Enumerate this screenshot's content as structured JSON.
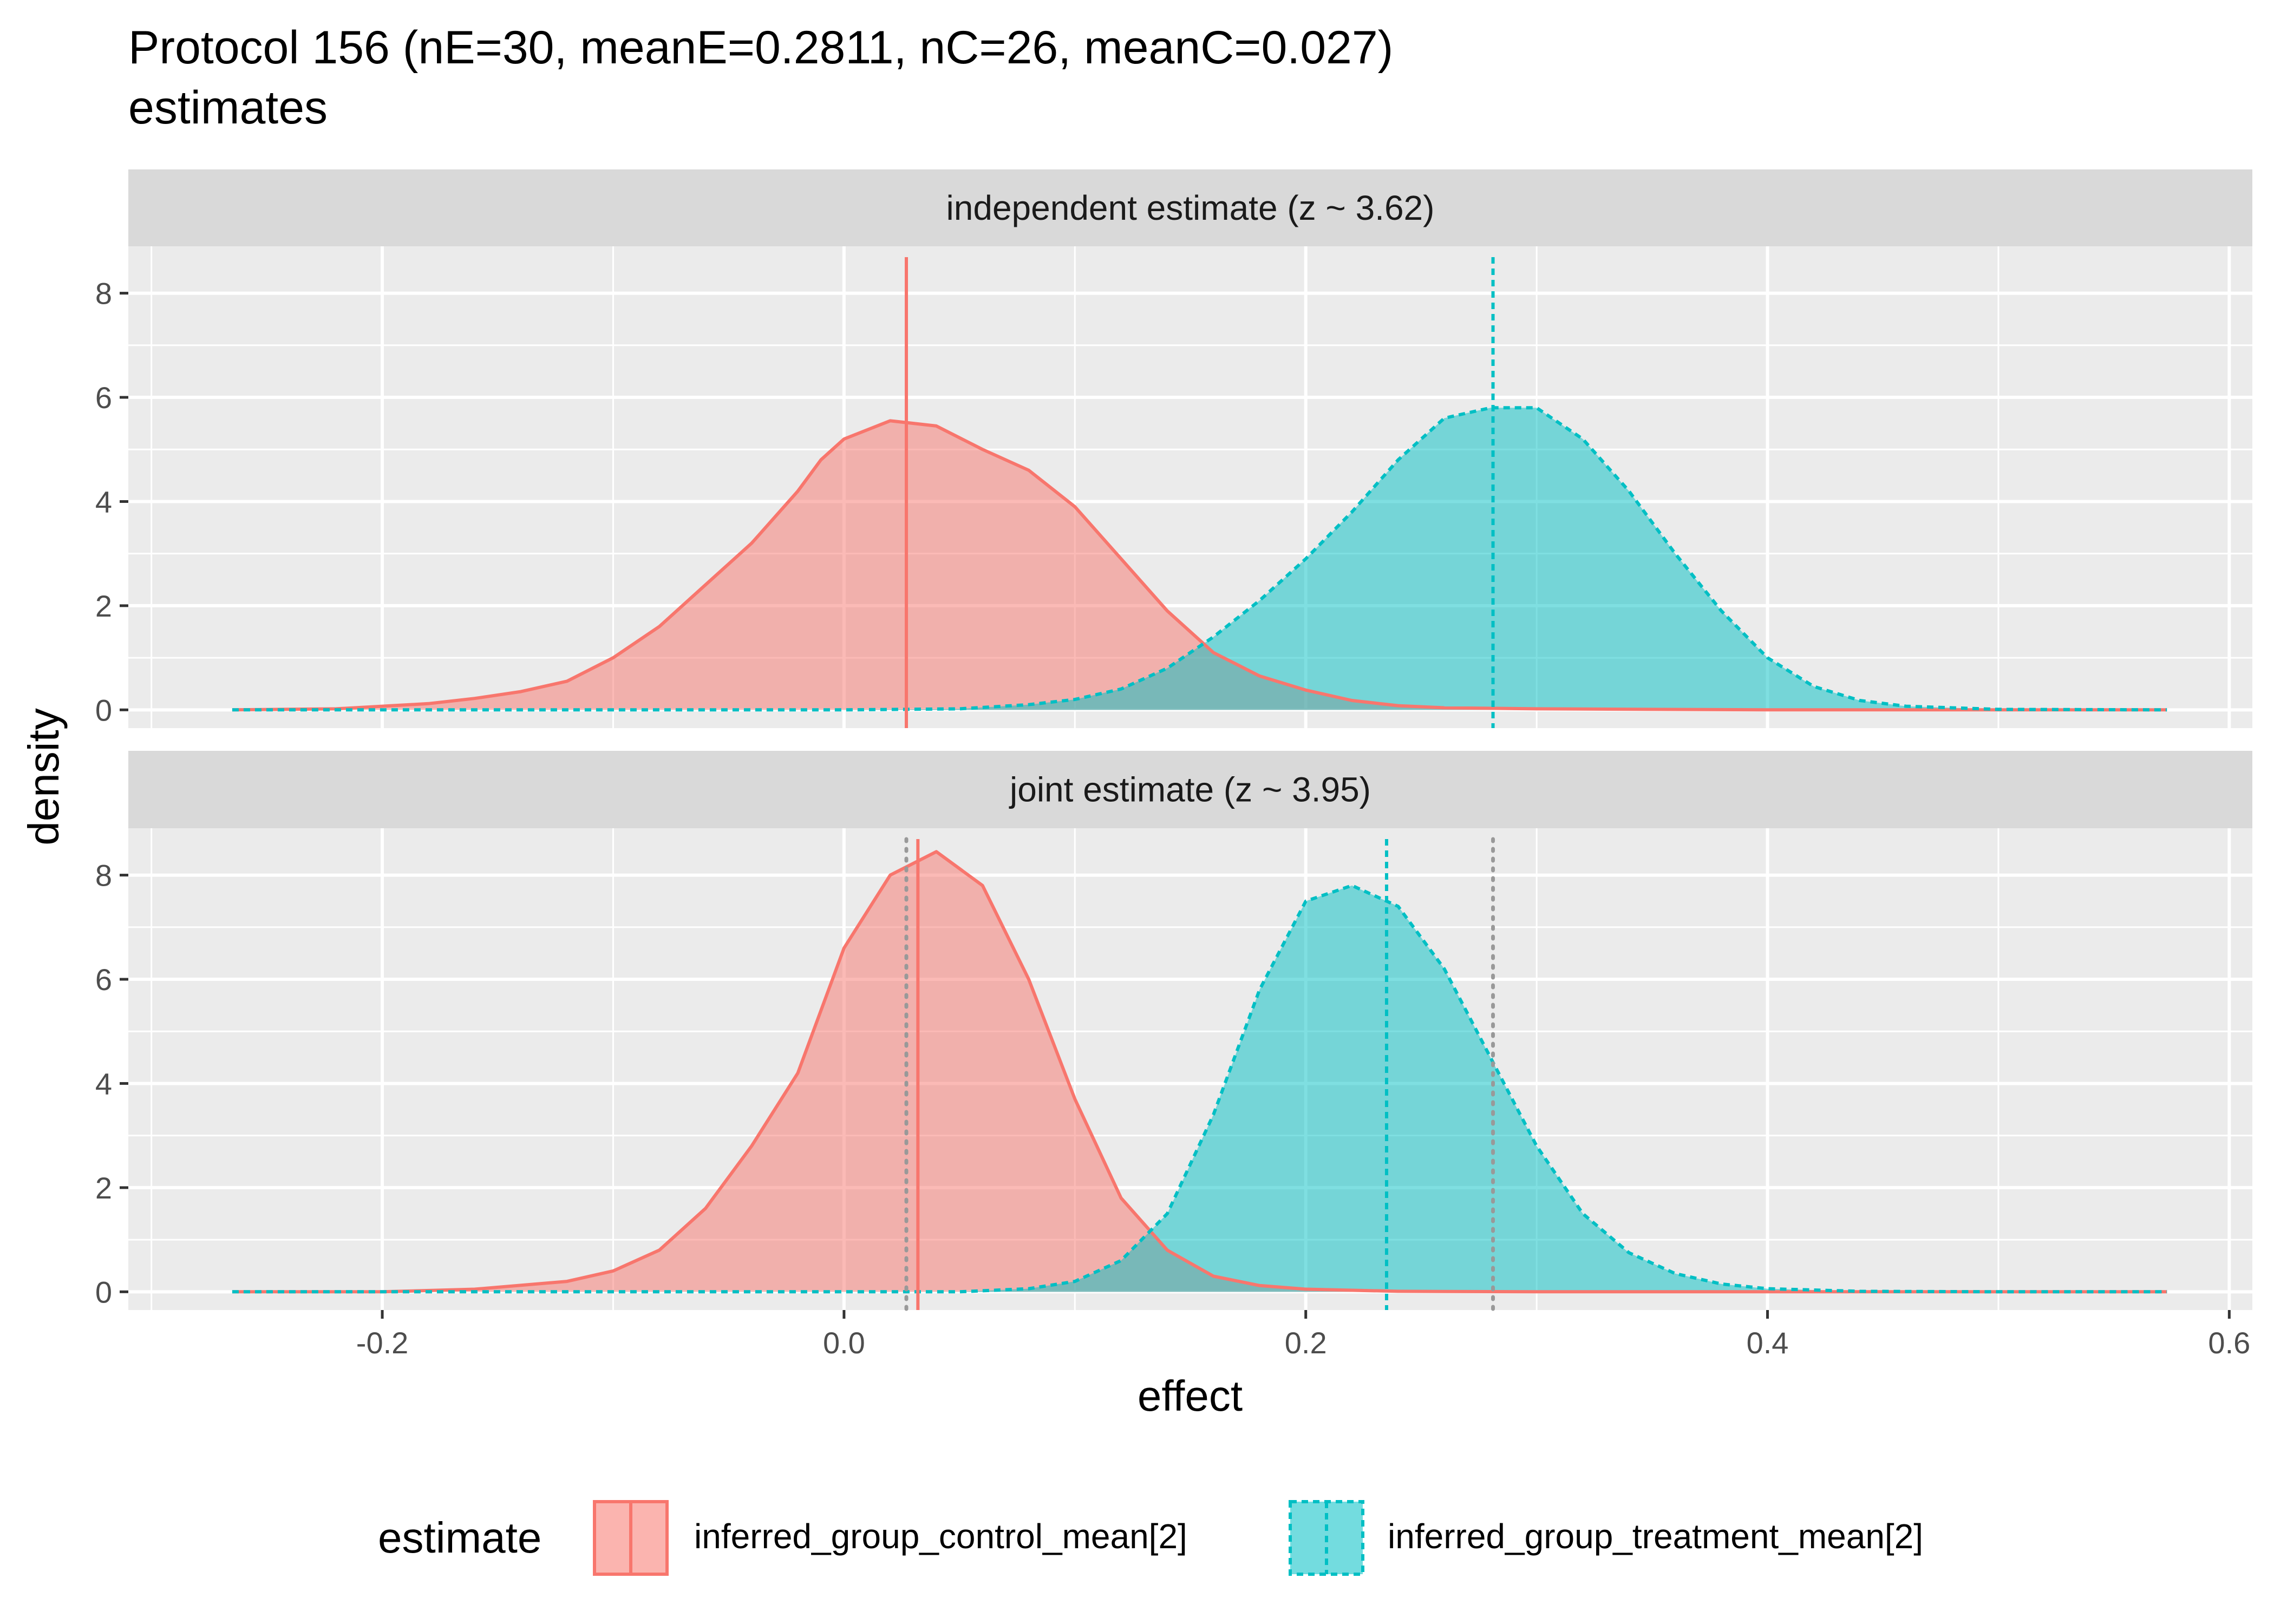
{
  "chart_data": {
    "type": "area",
    "title": "Protocol 156 (nE=30, meanE=0.2811, nC=26, meanC=0.027)",
    "subtitle": "estimates",
    "xlabel": "effect",
    "ylabel": "density",
    "xlim": [
      -0.31,
      0.61
    ],
    "ylim": [
      -0.35,
      8.9
    ],
    "xticks": [
      -0.2,
      0.0,
      0.2,
      0.4,
      0.6
    ],
    "xtick_labels": [
      "-0.2",
      "0.0",
      "0.2",
      "0.4",
      "0.6"
    ],
    "yticks": [
      0,
      2,
      4,
      6,
      8
    ],
    "ytick_labels": [
      "0",
      "2",
      "4",
      "6",
      "8"
    ],
    "grid": true,
    "legend": {
      "title": "estimate",
      "position": "bottom",
      "entries": [
        "inferred_group_control_mean[2]",
        "inferred_group_treatment_mean[2]"
      ]
    },
    "colors": {
      "control_line": "#F8766D",
      "control_fill": "#F8766D",
      "treatment_line": "#00BFC4",
      "treatment_fill": "#00BFC4",
      "reference": "#999999",
      "panel_bg": "#EBEBEB",
      "strip_bg": "#D9D9D9",
      "grid": "#FFFFFF"
    },
    "panels": [
      {
        "label": "independent estimate (z ~  3.62)",
        "reference_lines": [],
        "series": [
          {
            "name": "inferred_group_control_mean[2]",
            "style": "solid",
            "vline": 0.027,
            "x": [
              -0.265,
              -0.22,
              -0.18,
              -0.16,
              -0.14,
              -0.12,
              -0.1,
              -0.08,
              -0.06,
              -0.04,
              -0.02,
              -0.01,
              0.0,
              0.02,
              0.04,
              0.06,
              0.08,
              0.1,
              0.12,
              0.14,
              0.16,
              0.18,
              0.2,
              0.22,
              0.24,
              0.26,
              0.3,
              0.35,
              0.4,
              0.45,
              0.5,
              0.573
            ],
            "y": [
              0.0,
              0.02,
              0.12,
              0.22,
              0.35,
              0.55,
              1.0,
              1.6,
              2.4,
              3.2,
              4.2,
              4.8,
              5.2,
              5.55,
              5.45,
              5.0,
              4.6,
              3.9,
              2.9,
              1.9,
              1.1,
              0.65,
              0.38,
              0.18,
              0.08,
              0.04,
              0.02,
              0.01,
              0.0,
              0.0,
              0.0,
              0.0
            ]
          },
          {
            "name": "inferred_group_treatment_mean[2]",
            "style": "dashed",
            "vline": 0.2811,
            "x": [
              -0.265,
              0.0,
              0.05,
              0.08,
              0.1,
              0.12,
              0.14,
              0.16,
              0.18,
              0.2,
              0.22,
              0.24,
              0.26,
              0.28,
              0.3,
              0.32,
              0.34,
              0.36,
              0.38,
              0.4,
              0.42,
              0.44,
              0.46,
              0.5,
              0.573
            ],
            "y": [
              0.0,
              0.0,
              0.02,
              0.1,
              0.2,
              0.4,
              0.8,
              1.4,
              2.1,
              2.9,
              3.8,
              4.8,
              5.6,
              5.8,
              5.8,
              5.2,
              4.2,
              3.0,
              1.9,
              1.0,
              0.45,
              0.18,
              0.07,
              0.01,
              0.0
            ]
          }
        ]
      },
      {
        "label": "joint estimate (z ~  3.95)",
        "reference_lines": [
          0.027,
          0.2811
        ],
        "series": [
          {
            "name": "inferred_group_control_mean[2]",
            "style": "solid",
            "vline": 0.032,
            "x": [
              -0.265,
              -0.2,
              -0.16,
              -0.12,
              -0.1,
              -0.08,
              -0.06,
              -0.04,
              -0.02,
              0.0,
              0.02,
              0.04,
              0.06,
              0.08,
              0.1,
              0.12,
              0.14,
              0.16,
              0.18,
              0.2,
              0.24,
              0.3,
              0.573
            ],
            "y": [
              0.0,
              0.0,
              0.05,
              0.2,
              0.4,
              0.8,
              1.6,
              2.8,
              4.2,
              6.6,
              8.0,
              8.45,
              7.8,
              6.0,
              3.7,
              1.8,
              0.8,
              0.3,
              0.12,
              0.05,
              0.01,
              0.0,
              0.0
            ]
          },
          {
            "name": "inferred_group_treatment_mean[2]",
            "style": "dashed",
            "vline": 0.235,
            "x": [
              -0.265,
              0.05,
              0.08,
              0.1,
              0.12,
              0.14,
              0.16,
              0.18,
              0.2,
              0.22,
              0.24,
              0.26,
              0.28,
              0.3,
              0.32,
              0.34,
              0.36,
              0.38,
              0.4,
              0.44,
              0.5,
              0.573
            ],
            "y": [
              0.0,
              0.0,
              0.06,
              0.2,
              0.6,
              1.5,
              3.4,
              5.8,
              7.5,
              7.8,
              7.4,
              6.2,
              4.5,
              2.8,
              1.5,
              0.75,
              0.35,
              0.15,
              0.06,
              0.01,
              0.0,
              0.0
            ]
          }
        ]
      }
    ]
  }
}
